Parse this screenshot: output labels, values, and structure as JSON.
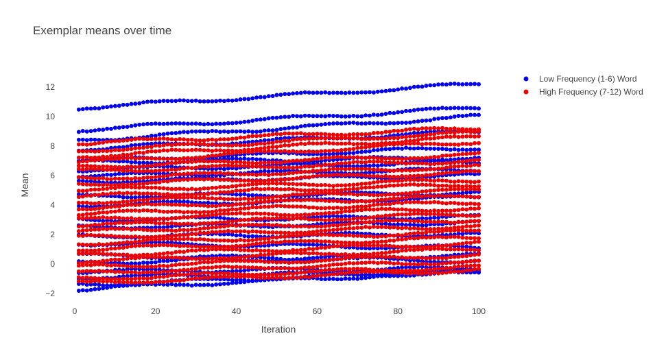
{
  "chart_data": {
    "type": "scatter",
    "title": "Exemplar means over time",
    "xlabel": "Iteration",
    "ylabel": "Mean",
    "xlim": [
      0,
      100
    ],
    "ylim": [
      -2.6,
      13.2
    ],
    "xticks": [
      "0",
      "20",
      "40",
      "60",
      "80",
      "100"
    ],
    "yticks": [
      "−2",
      "0",
      "2",
      "4",
      "6",
      "8",
      "10",
      "12"
    ],
    "grid": false,
    "legend_position": "top-right",
    "iterations": [
      1,
      100
    ],
    "series": [
      {
        "name": "Low Frequency (1-6) Word",
        "color": "#0000ee",
        "trajectories": [
          {
            "start": 10.6,
            "end": 12.2
          },
          {
            "start": 9.1,
            "end": 10.6
          },
          {
            "start": 8.4,
            "end": 10.0
          },
          {
            "start": 7.8,
            "end": 9.0
          },
          {
            "start": 7.0,
            "end": 7.9
          },
          {
            "start": 6.9,
            "end": 7.2
          },
          {
            "start": 6.4,
            "end": 6.9
          },
          {
            "start": 6.0,
            "end": 6.4
          },
          {
            "start": 5.6,
            "end": 6.0
          },
          {
            "start": 4.6,
            "end": 4.8
          },
          {
            "start": 4.0,
            "end": 4.5
          },
          {
            "start": 3.0,
            "end": 3.2
          },
          {
            "start": 2.5,
            "end": 2.8
          },
          {
            "start": 1.9,
            "end": 2.0
          },
          {
            "start": 1.4,
            "end": 1.1
          },
          {
            "start": 0.6,
            "end": 0.2
          },
          {
            "start": 0.1,
            "end": 0.6
          },
          {
            "start": -0.5,
            "end": -0.3
          },
          {
            "start": -0.9,
            "end": -0.5
          },
          {
            "start": -1.4,
            "end": -0.5
          },
          {
            "start": -1.7,
            "end": -0.5
          }
        ]
      },
      {
        "name": "High Frequency (7-12) Word",
        "color": "#ee0000",
        "trajectories": [
          {
            "start": 8.2,
            "end": 9.2
          },
          {
            "start": 7.7,
            "end": 8.9
          },
          {
            "start": 7.3,
            "end": 8.6
          },
          {
            "start": 6.9,
            "end": 8.3
          },
          {
            "start": 6.6,
            "end": 7.4
          },
          {
            "start": 6.3,
            "end": 7.0
          },
          {
            "start": 5.8,
            "end": 6.6
          },
          {
            "start": 5.4,
            "end": 6.2
          },
          {
            "start": 5.0,
            "end": 5.7
          },
          {
            "start": 4.6,
            "end": 5.4
          },
          {
            "start": 4.2,
            "end": 5.0
          },
          {
            "start": 3.8,
            "end": 4.6
          },
          {
            "start": 3.4,
            "end": 4.2
          },
          {
            "start": 3.0,
            "end": 3.8
          },
          {
            "start": 2.6,
            "end": 3.4
          },
          {
            "start": 2.2,
            "end": 3.0
          },
          {
            "start": 1.8,
            "end": 2.6
          },
          {
            "start": 1.4,
            "end": 2.2
          },
          {
            "start": 1.0,
            "end": 1.8
          },
          {
            "start": 0.6,
            "end": 1.4
          },
          {
            "start": 0.2,
            "end": 1.0
          },
          {
            "start": -0.2,
            "end": 0.6
          },
          {
            "start": -0.6,
            "end": 0.2
          },
          {
            "start": -1.0,
            "end": -0.2
          },
          {
            "start": -1.3,
            "end": -0.4
          }
        ]
      }
    ]
  }
}
